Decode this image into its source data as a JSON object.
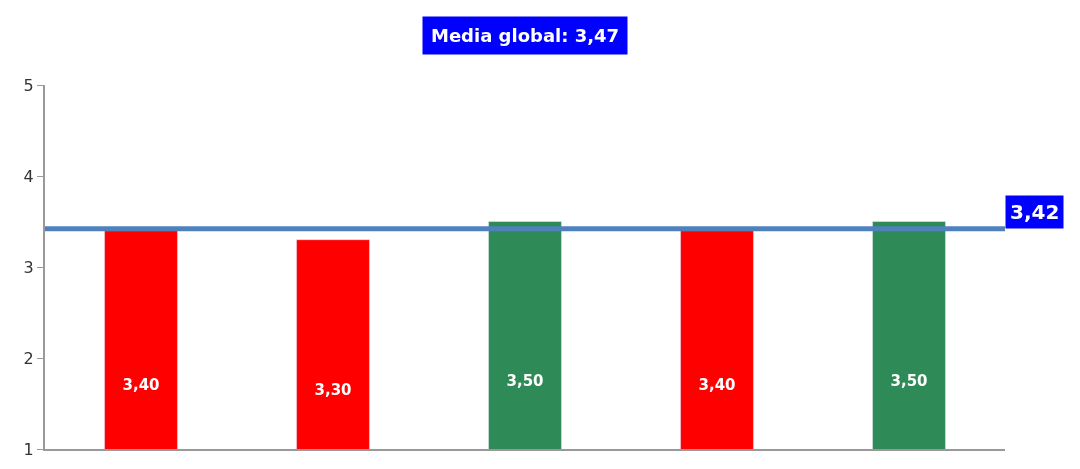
{
  "chart_data": {
    "type": "bar",
    "title": "Media global: 3,47",
    "categories": [
      null,
      null,
      null,
      null,
      null
    ],
    "values": [
      3.4,
      3.3,
      3.5,
      3.4,
      3.5
    ],
    "colors": [
      "#ff0000",
      "#ff0000",
      "#2e8b57",
      "#ff0000",
      "#2e8b57"
    ],
    "value_labels": [
      "3,40",
      "3,30",
      "3,50",
      "3,40",
      "3,50"
    ],
    "ylim": [
      1,
      5
    ],
    "yticks": [
      1,
      2,
      3,
      4,
      5
    ],
    "ref_lines": [
      {
        "axis": "y",
        "value": 3.42,
        "label": "3,42",
        "color": "#4f81bd"
      }
    ]
  }
}
